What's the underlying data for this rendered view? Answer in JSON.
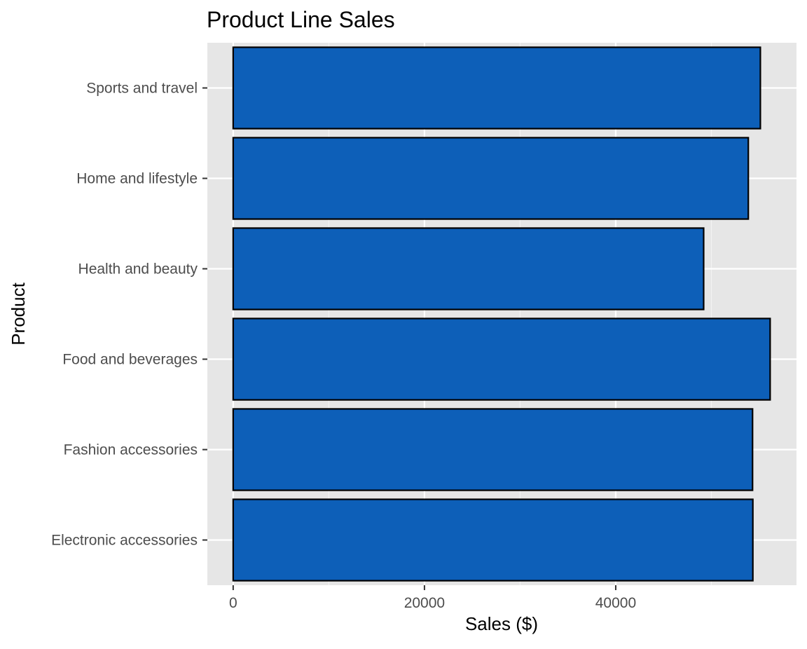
{
  "chart_data": {
    "type": "bar",
    "orientation": "horizontal",
    "title": "Product Line Sales",
    "xlabel": "Sales ($)",
    "ylabel": "Product",
    "categories": [
      "Electronic accessories",
      "Fashion accessories",
      "Food and beverages",
      "Health and beauty",
      "Home and lifestyle",
      "Sports and travel"
    ],
    "values": [
      54338,
      54306,
      56145,
      49194,
      53862,
      55123
    ],
    "xlim": [
      -2700,
      58900
    ],
    "xticks": [
      0,
      20000,
      40000
    ],
    "grid": true,
    "legend": "none",
    "colors": {
      "bar_fill": "#0d5fb8",
      "bar_stroke": "#000000",
      "panel_bg": "#e6e6e6",
      "grid_major": "#ffffff",
      "grid_minor": "#f2f2f2"
    }
  }
}
